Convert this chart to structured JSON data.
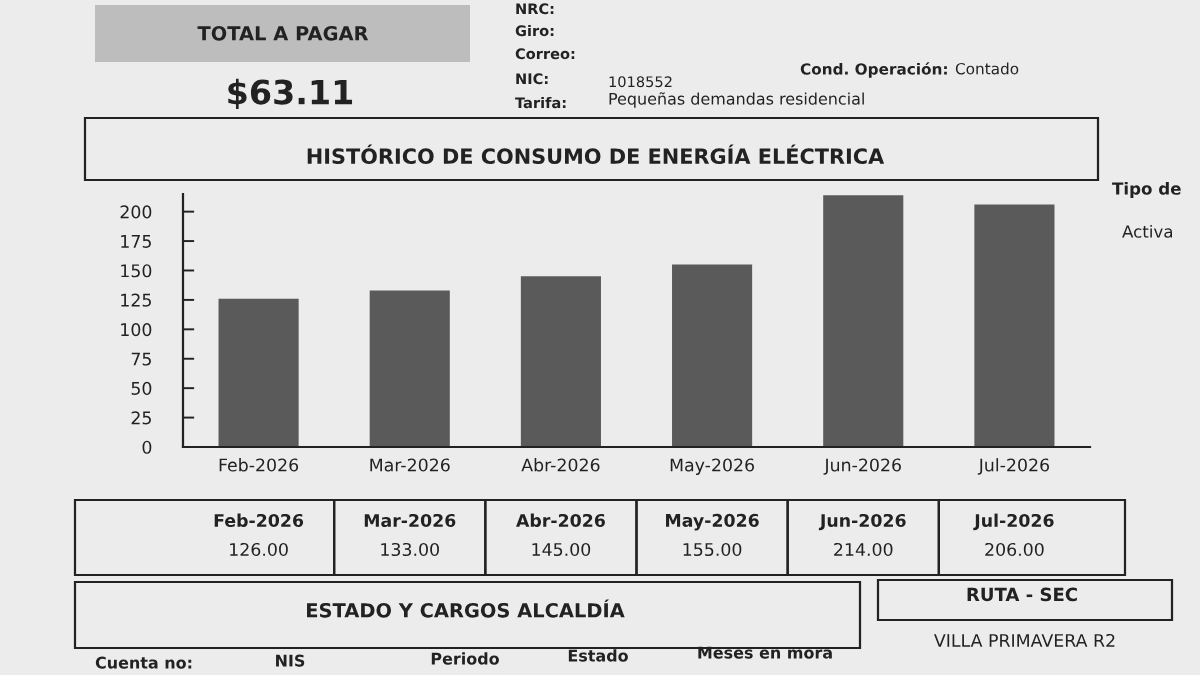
{
  "chart_data": {
    "type": "bar",
    "title": "HISTÓRICO DE CONSUMO DE ENERGÍA ELÉCTRICA",
    "categories": [
      "Feb-2026",
      "Mar-2026",
      "Abr-2026",
      "May-2026",
      "Jun-2026",
      "Jul-2026"
    ],
    "values": [
      126,
      133,
      145,
      155,
      214,
      206
    ],
    "value_labels": [
      "126.00",
      "133.00",
      "145.00",
      "155.00",
      "214.00",
      "206.00"
    ],
    "color": "#5a5a5a",
    "ylim": [
      0,
      215
    ],
    "yticks": [
      0,
      25,
      50,
      75,
      100,
      125,
      150,
      175,
      200
    ],
    "annotations": [
      "TOTAL A PAGAR",
      "$63.11",
      "NRC:",
      "Giro:",
      "Correo:",
      "NIC:",
      "1018552",
      "Cond. Operación:",
      "Contado",
      "Tarifa:",
      "Pequeñas demandas residencial",
      "Tipo de",
      "Activa",
      "ESTADO Y CARGOS ALCALDÍA",
      "RUTA - SEC",
      "VILLA PRIMAVERA R2",
      "Cuenta no:",
      "NIS",
      "Periodo",
      "Estado",
      "Meses en mora"
    ]
  }
}
